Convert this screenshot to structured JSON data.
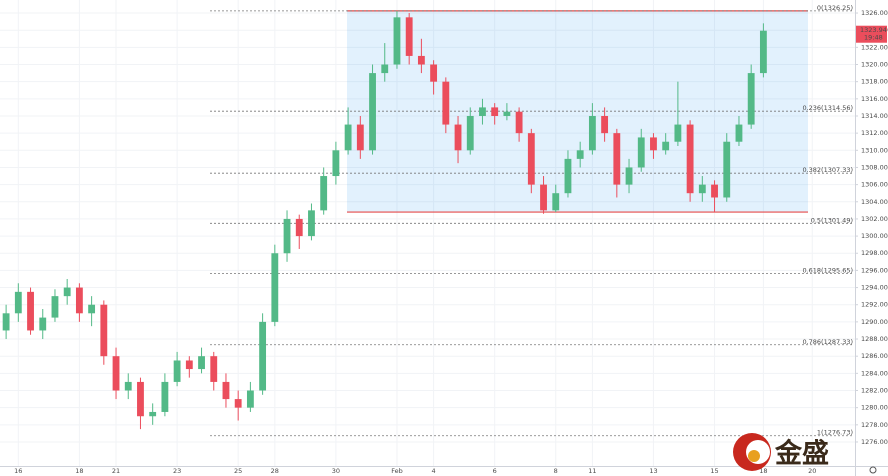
{
  "chart_data": {
    "type": "candlestick",
    "up_color": "#53b987",
    "down_color": "#eb4d5c",
    "categories": [
      null,
      "16",
      null,
      null,
      null,
      null,
      "18",
      null,
      null,
      "21",
      null,
      null,
      null,
      null,
      "23",
      null,
      null,
      null,
      null,
      "25",
      null,
      null,
      "28",
      null,
      null,
      null,
      null,
      "30",
      null,
      null,
      null,
      null,
      "Feb",
      null,
      null,
      "4",
      null,
      null,
      null,
      null,
      "6",
      null,
      null,
      null,
      null,
      "8",
      null,
      null,
      "11",
      null,
      null,
      null,
      null,
      "13",
      null,
      null,
      null,
      null,
      "15",
      null,
      null,
      null,
      "18",
      null,
      null,
      null,
      "20",
      null,
      null,
      null
    ],
    "open": [
      1289,
      1291,
      1293.5,
      1289,
      1290.5,
      1293,
      1294,
      1291,
      1292,
      1286,
      1282,
      1283,
      1279,
      1279.5,
      1283,
      1285.5,
      1284.5,
      1286,
      1283,
      1281,
      1280,
      1282,
      1290,
      1298,
      1302,
      1300,
      1303,
      1307,
      1310,
      1313,
      1310,
      1319,
      1320,
      1325.5,
      1321,
      1320,
      1318,
      1313,
      1310,
      1314,
      1315,
      1314,
      1314.5,
      1312,
      1306,
      1303,
      1305,
      1309,
      1310,
      1314,
      1312,
      1306,
      1308,
      1311.5,
      1310,
      1311,
      1313,
      1305,
      1306,
      1304.5,
      1311,
      1313,
      1319,
      null,
      null,
      null,
      null,
      null,
      null,
      null
    ],
    "high": [
      1292,
      1294.5,
      1294,
      1291.5,
      1293.8,
      1295,
      1294.5,
      1293,
      1292.5,
      1287,
      1284,
      1283.5,
      1280.5,
      1284,
      1286.5,
      1286,
      1287,
      1286.5,
      1284,
      1282,
      1283,
      1291,
      1299,
      1303,
      1302.5,
      1303.8,
      1308,
      1311,
      1315,
      1314,
      1320,
      1322.5,
      1326.25,
      1326,
      1323,
      1320.5,
      1318.5,
      1314,
      1315,
      1316,
      1315.5,
      1315.5,
      1315,
      1312.5,
      1307,
      1306,
      1310,
      1311,
      1315.5,
      1315,
      1312.5,
      1309,
      1312.5,
      1312,
      1312,
      1318,
      1313.5,
      1307,
      1306.5,
      1312,
      1314,
      1320,
      1324.8,
      null,
      null,
      null,
      null,
      null,
      null,
      null
    ],
    "low": [
      1288,
      1290,
      1288.5,
      1288,
      1290,
      1292,
      1290,
      1289.5,
      1285,
      1281,
      1281,
      1277.5,
      1278,
      1279,
      1282.5,
      1283.5,
      1284,
      1282,
      1280,
      1278.5,
      1279.5,
      1281.5,
      1289.5,
      1297,
      1298.5,
      1299.5,
      1302.5,
      1306,
      1309.5,
      1309,
      1309.5,
      1318,
      1319.5,
      1320,
      1319,
      1316.5,
      1312,
      1308.5,
      1309.5,
      1313,
      1313,
      1313.5,
      1311,
      1305,
      1302.6,
      1302.8,
      1304.5,
      1308,
      1309.5,
      1311,
      1304.5,
      1305,
      1307.5,
      1309,
      1309.5,
      1310.5,
      1304,
      1304,
      1302.8,
      1304,
      1310.5,
      1312.5,
      1318.5,
      null,
      null,
      null,
      null,
      null,
      null,
      null
    ],
    "close": [
      1291,
      1293.5,
      1289,
      1290.5,
      1293,
      1294,
      1291,
      1292,
      1286,
      1282,
      1283,
      1279,
      1279.5,
      1283,
      1285.5,
      1284.5,
      1286,
      1283,
      1281,
      1280,
      1282,
      1290,
      1298,
      1302,
      1300,
      1303,
      1307,
      1310,
      1313,
      1310,
      1319,
      1320,
      1325.5,
      1321,
      1320,
      1318,
      1313,
      1310,
      1314,
      1315,
      1314,
      1314.5,
      1312,
      1306,
      1303,
      1305,
      1309,
      1310,
      1314,
      1312,
      1306,
      1308,
      1311.5,
      1310,
      1311,
      1313,
      1305,
      1306,
      1304.5,
      1311,
      1313,
      1319,
      1323.94,
      null,
      null,
      null,
      null,
      null,
      null,
      null
    ],
    "last_time": "19:48",
    "ylim": [
      1273.2,
      1327.52
    ],
    "yticks": [
      {
        "value": 1276,
        "label": "1276.00"
      },
      {
        "value": 1278,
        "label": "1278.00"
      },
      {
        "value": 1280,
        "label": "1280.00"
      },
      {
        "value": 1282,
        "label": "1282.00"
      },
      {
        "value": 1284,
        "label": "1284.00"
      },
      {
        "value": 1286,
        "label": "1286.00"
      },
      {
        "value": 1288,
        "label": "1288.00"
      },
      {
        "value": 1290,
        "label": "1290.00"
      },
      {
        "value": 1292,
        "label": "1292.00"
      },
      {
        "value": 1294,
        "label": "1294.00"
      },
      {
        "value": 1296,
        "label": "1296.00"
      },
      {
        "value": 1298,
        "label": "1298.00"
      },
      {
        "value": 1300,
        "label": "1300.00"
      },
      {
        "value": 1302,
        "label": "1302.00"
      },
      {
        "value": 1304,
        "label": "1304.00"
      },
      {
        "value": 1306,
        "label": "1306.00"
      },
      {
        "value": 1308,
        "label": "1308.00"
      },
      {
        "value": 1310,
        "label": "1310.00"
      },
      {
        "value": 1312,
        "label": "1312.00"
      },
      {
        "value": 1314,
        "label": "1314.00"
      },
      {
        "value": 1316,
        "label": "1316.00"
      },
      {
        "value": 1318,
        "label": "1318.00"
      },
      {
        "value": 1320,
        "label": "1320.00"
      },
      {
        "value": 1322,
        "label": "1322.00"
      },
      {
        "value": 1324,
        "label": "1324.00"
      },
      {
        "value": 1326,
        "label": "1326.00"
      }
    ],
    "grid": true,
    "range_box": [
      1302.8,
      1326.25
    ],
    "fib_levels": [
      {
        "value": 1326.25,
        "label": "0(1326.25)"
      },
      {
        "value": 1314.56,
        "label": "0.236(1314.56)"
      },
      {
        "value": 1307.33,
        "label": "0.382(1307.33)"
      },
      {
        "value": 1301.49,
        "label": "0.5(1301.49)"
      },
      {
        "value": 1295.65,
        "label": "0.618(1295.65)"
      },
      {
        "value": 1287.33,
        "label": "0.786(1287.33)"
      },
      {
        "value": 1276.73,
        "label": "1(1276.73)"
      }
    ],
    "watermark": "金盛"
  }
}
